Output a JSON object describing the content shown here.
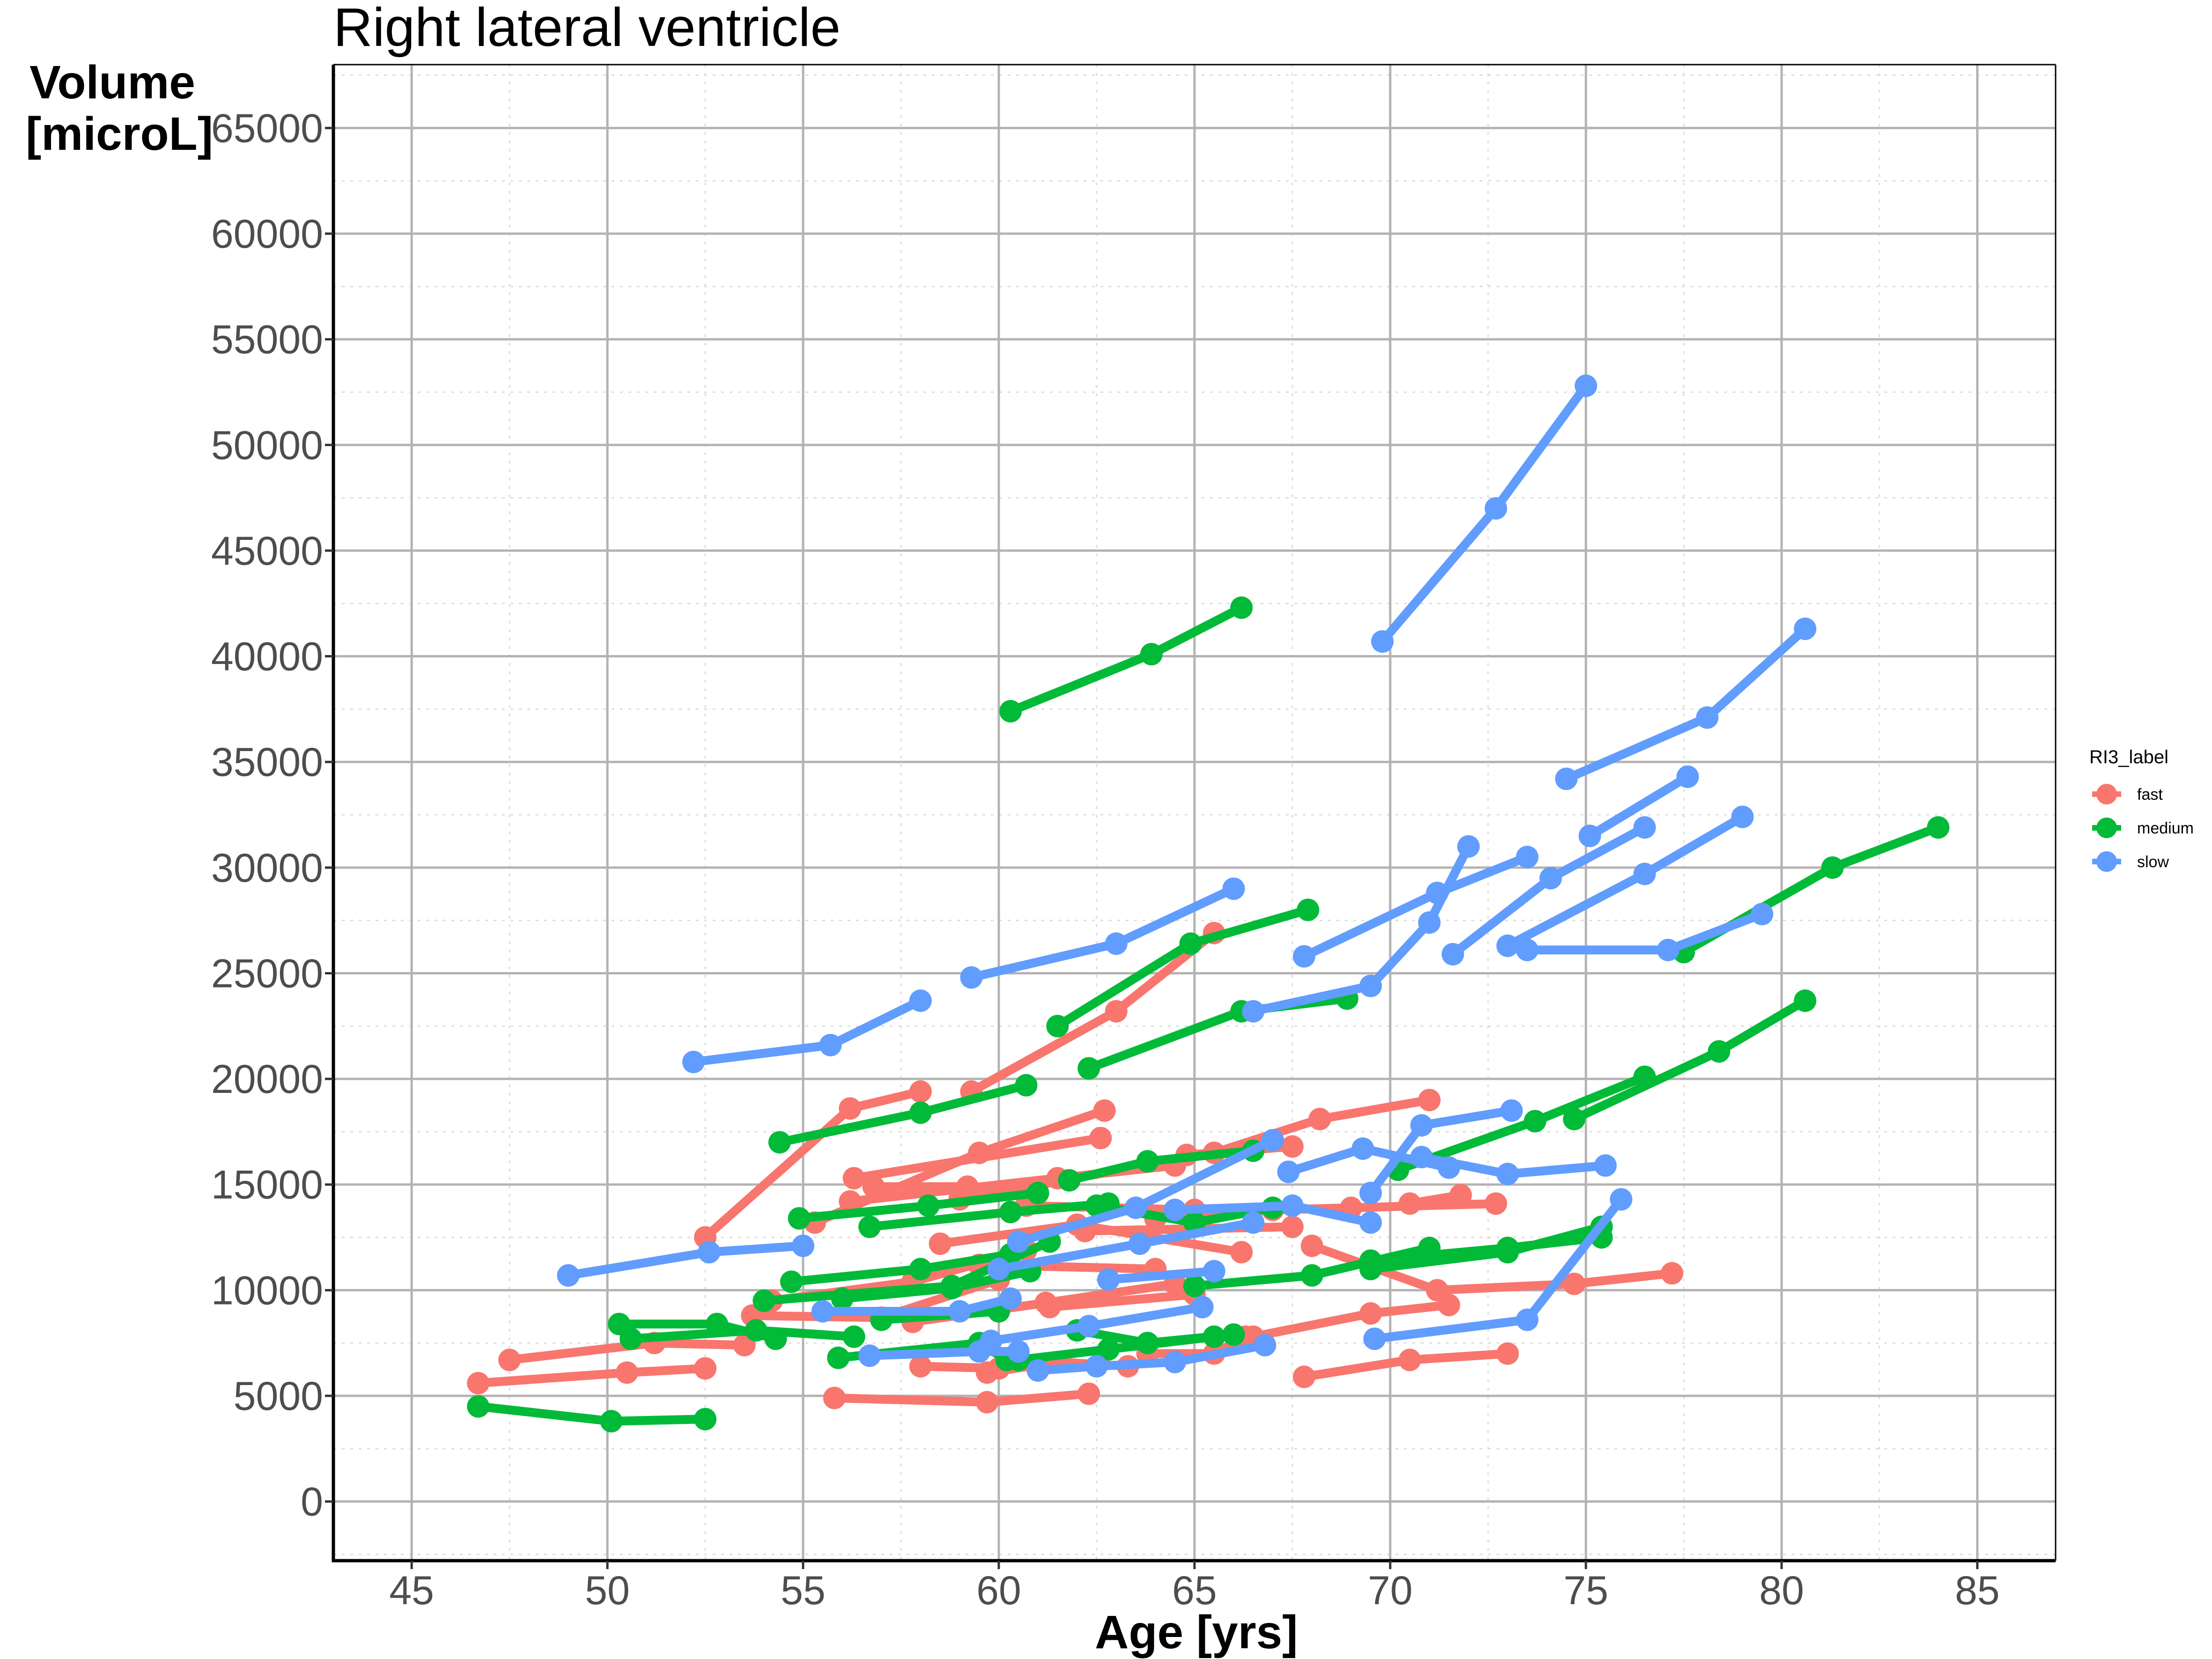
{
  "chart_data": {
    "type": "line",
    "title": "Right lateral ventricle",
    "xlabel": "Age [yrs]",
    "ylabel_lines": [
      "Volume",
      "[microL]"
    ],
    "xlim": [
      43,
      87
    ],
    "ylim": [
      -2800,
      68000
    ],
    "xticks": [
      45,
      50,
      55,
      60,
      65,
      70,
      75,
      80,
      85
    ],
    "yticks": [
      0,
      5000,
      10000,
      15000,
      20000,
      25000,
      30000,
      35000,
      40000,
      45000,
      50000,
      55000,
      60000,
      65000
    ],
    "grid": true,
    "legend": {
      "title": "RI3_label",
      "position": "right",
      "entries": [
        {
          "label": "fast",
          "color": "#F8766D"
        },
        {
          "label": "medium",
          "color": "#00BA38"
        },
        {
          "label": "slow",
          "color": "#619CFF"
        }
      ]
    },
    "series": [
      {
        "group": "fast",
        "points": [
          [
            46.7,
            5600
          ],
          [
            50.5,
            6100
          ],
          [
            52.5,
            6300
          ]
        ]
      },
      {
        "group": "fast",
        "points": [
          [
            47.5,
            6700
          ],
          [
            51.2,
            7500
          ],
          [
            53.5,
            7400
          ]
        ]
      },
      {
        "group": "fast",
        "points": [
          [
            52.5,
            12500
          ],
          [
            56.2,
            18600
          ],
          [
            58.0,
            19400
          ]
        ]
      },
      {
        "group": "fast",
        "points": [
          [
            55.3,
            13200
          ],
          [
            59.5,
            16500
          ],
          [
            62.7,
            18500
          ]
        ]
      },
      {
        "group": "fast",
        "points": [
          [
            56.3,
            15300
          ],
          [
            62.6,
            17200
          ]
        ]
      },
      {
        "group": "fast",
        "points": [
          [
            56.8,
            14900
          ],
          [
            59.2,
            14900
          ]
        ]
      },
      {
        "group": "fast",
        "points": [
          [
            56.2,
            14200
          ],
          [
            61.5,
            15300
          ],
          [
            64.5,
            15900
          ]
        ]
      },
      {
        "group": "fast",
        "points": [
          [
            59.3,
            19400
          ],
          [
            63.0,
            23200
          ],
          [
            65.5,
            26900
          ]
        ]
      },
      {
        "group": "fast",
        "points": [
          [
            53.7,
            8800
          ],
          [
            57.0,
            8700
          ],
          [
            60.0,
            10500
          ]
        ]
      },
      {
        "group": "fast",
        "points": [
          [
            54.2,
            9500
          ],
          [
            57.8,
            10400
          ],
          [
            60.7,
            11900
          ]
        ]
      },
      {
        "group": "fast",
        "points": [
          [
            58.5,
            12200
          ],
          [
            62.0,
            13100
          ],
          [
            66.2,
            11800
          ]
        ]
      },
      {
        "group": "fast",
        "points": [
          [
            57.8,
            8500
          ],
          [
            61.2,
            9400
          ],
          [
            64.5,
            10300
          ]
        ]
      },
      {
        "group": "fast",
        "points": [
          [
            59.5,
            11200
          ],
          [
            64.0,
            11000
          ]
        ]
      },
      {
        "group": "fast",
        "points": [
          [
            60.7,
            14000
          ],
          [
            65.0,
            13800
          ]
        ]
      },
      {
        "group": "fast",
        "points": [
          [
            59.0,
            14300
          ],
          [
            65.5,
            16500
          ],
          [
            68.2,
            18100
          ],
          [
            71.0,
            19000
          ]
        ]
      },
      {
        "group": "fast",
        "points": [
          [
            62.2,
            12800
          ],
          [
            67.5,
            13000
          ]
        ]
      },
      {
        "group": "fast",
        "points": [
          [
            64.0,
            13400
          ],
          [
            67.0,
            13800
          ],
          [
            69.0,
            13900
          ],
          [
            72.7,
            14100
          ]
        ]
      },
      {
        "group": "fast",
        "points": [
          [
            64.8,
            16400
          ],
          [
            67.5,
            16800
          ]
        ]
      },
      {
        "group": "fast",
        "points": [
          [
            70.5,
            14100
          ],
          [
            71.8,
            14500
          ]
        ]
      },
      {
        "group": "fast",
        "points": [
          [
            58.0,
            6400
          ],
          [
            60.0,
            6300
          ]
        ]
      },
      {
        "group": "fast",
        "points": [
          [
            55.8,
            4900
          ],
          [
            59.7,
            4700
          ],
          [
            62.3,
            5100
          ]
        ]
      },
      {
        "group": "fast",
        "points": [
          [
            59.7,
            6100
          ],
          [
            61.5,
            6600
          ],
          [
            63.3,
            6400
          ]
        ]
      },
      {
        "group": "fast",
        "points": [
          [
            63.8,
            7000
          ],
          [
            65.5,
            7000
          ],
          [
            66.3,
            7800
          ]
        ]
      },
      {
        "group": "fast",
        "points": [
          [
            66.5,
            7800
          ],
          [
            69.5,
            8900
          ],
          [
            71.5,
            9300
          ]
        ]
      },
      {
        "group": "fast",
        "points": [
          [
            67.8,
            5900
          ],
          [
            70.5,
            6700
          ],
          [
            73.0,
            7000
          ]
        ]
      },
      {
        "group": "fast",
        "points": [
          [
            68.0,
            12100
          ],
          [
            71.2,
            10000
          ],
          [
            74.7,
            10300
          ],
          [
            77.2,
            10800
          ]
        ]
      },
      {
        "group": "fast",
        "points": [
          [
            61.3,
            9200
          ],
          [
            65.0,
            9800
          ]
        ]
      },
      {
        "group": "medium",
        "points": [
          [
            46.7,
            4500
          ],
          [
            50.1,
            3800
          ],
          [
            52.5,
            3900
          ]
        ]
      },
      {
        "group": "medium",
        "points": [
          [
            50.3,
            8400
          ],
          [
            52.8,
            8400
          ],
          [
            54.3,
            7700
          ]
        ]
      },
      {
        "group": "medium",
        "points": [
          [
            50.6,
            7700
          ],
          [
            53.8,
            8100
          ],
          [
            56.3,
            7800
          ]
        ]
      },
      {
        "group": "medium",
        "points": [
          [
            54.0,
            9500
          ],
          [
            58.8,
            10200
          ],
          [
            61.3,
            12300
          ]
        ]
      },
      {
        "group": "medium",
        "points": [
          [
            54.4,
            17000
          ],
          [
            58.0,
            18400
          ],
          [
            60.7,
            19700
          ]
        ]
      },
      {
        "group": "medium",
        "points": [
          [
            54.7,
            10400
          ],
          [
            58.0,
            11000
          ],
          [
            60.3,
            11700
          ]
        ]
      },
      {
        "group": "medium",
        "points": [
          [
            54.9,
            13400
          ],
          [
            58.2,
            14000
          ],
          [
            61.0,
            14600
          ]
        ]
      },
      {
        "group": "medium",
        "points": [
          [
            56.7,
            13000
          ],
          [
            60.3,
            13700
          ],
          [
            62.8,
            14100
          ]
        ]
      },
      {
        "group": "medium",
        "points": [
          [
            56.0,
            9600
          ],
          [
            58.8,
            10100
          ],
          [
            60.8,
            10900
          ]
        ]
      },
      {
        "group": "medium",
        "points": [
          [
            55.9,
            6800
          ],
          [
            59.5,
            7500
          ],
          [
            60.2,
            6700
          ]
        ]
      },
      {
        "group": "medium",
        "points": [
          [
            57.0,
            8600
          ],
          [
            60.0,
            9000
          ]
        ]
      },
      {
        "group": "medium",
        "points": [
          [
            61.5,
            22500
          ],
          [
            64.9,
            26400
          ],
          [
            67.9,
            28000
          ]
        ]
      },
      {
        "group": "medium",
        "points": [
          [
            60.3,
            37400
          ],
          [
            63.9,
            40100
          ],
          [
            66.2,
            42300
          ]
        ]
      },
      {
        "group": "medium",
        "points": [
          [
            62.3,
            20500
          ],
          [
            66.2,
            23200
          ],
          [
            68.9,
            23800
          ]
        ]
      },
      {
        "group": "medium",
        "points": [
          [
            61.8,
            15200
          ],
          [
            63.8,
            16100
          ],
          [
            66.5,
            16600
          ]
        ]
      },
      {
        "group": "medium",
        "points": [
          [
            60.5,
            6700
          ],
          [
            62.8,
            7200
          ],
          [
            65.5,
            7800
          ]
        ]
      },
      {
        "group": "medium",
        "points": [
          [
            62.0,
            8100
          ],
          [
            63.8,
            7500
          ],
          [
            66.0,
            7900
          ]
        ]
      },
      {
        "group": "medium",
        "points": [
          [
            62.5,
            14000
          ],
          [
            65.0,
            13200
          ],
          [
            67.0,
            13900
          ]
        ]
      },
      {
        "group": "medium",
        "points": [
          [
            65.0,
            10200
          ],
          [
            68.0,
            10700
          ],
          [
            71.0,
            12000
          ]
        ]
      },
      {
        "group": "medium",
        "points": [
          [
            69.5,
            11000
          ],
          [
            73.0,
            11800
          ],
          [
            75.4,
            13000
          ]
        ]
      },
      {
        "group": "medium",
        "points": [
          [
            69.5,
            11400
          ],
          [
            73.0,
            12000
          ],
          [
            75.4,
            12500
          ]
        ]
      },
      {
        "group": "medium",
        "points": [
          [
            70.2,
            15700
          ],
          [
            73.7,
            18000
          ],
          [
            76.5,
            20100
          ]
        ]
      },
      {
        "group": "medium",
        "points": [
          [
            74.7,
            18100
          ],
          [
            78.4,
            21300
          ],
          [
            80.6,
            23700
          ]
        ]
      },
      {
        "group": "medium",
        "points": [
          [
            77.5,
            26000
          ],
          [
            81.3,
            30000
          ],
          [
            84.0,
            31900
          ]
        ]
      },
      {
        "group": "slow",
        "points": [
          [
            49.0,
            10700
          ],
          [
            52.6,
            11800
          ],
          [
            55.0,
            12100
          ]
        ]
      },
      {
        "group": "slow",
        "points": [
          [
            52.2,
            20800
          ],
          [
            55.7,
            21600
          ],
          [
            58.0,
            23700
          ]
        ]
      },
      {
        "group": "slow",
        "points": [
          [
            55.5,
            9000
          ],
          [
            59.0,
            9000
          ],
          [
            60.3,
            9600
          ]
        ]
      },
      {
        "group": "slow",
        "points": [
          [
            56.7,
            6900
          ],
          [
            59.5,
            7100
          ],
          [
            60.5,
            7100
          ]
        ]
      },
      {
        "group": "slow",
        "points": [
          [
            59.3,
            24800
          ],
          [
            63.0,
            26400
          ],
          [
            66.0,
            29000
          ]
        ]
      },
      {
        "group": "slow",
        "points": [
          [
            60.5,
            12300
          ],
          [
            63.5,
            13900
          ],
          [
            67.0,
            17100
          ]
        ]
      },
      {
        "group": "slow",
        "points": [
          [
            60.0,
            11000
          ],
          [
            63.6,
            12200
          ],
          [
            66.5,
            13200
          ]
        ]
      },
      {
        "group": "slow",
        "points": [
          [
            59.8,
            7600
          ],
          [
            62.3,
            8300
          ],
          [
            65.2,
            9200
          ]
        ]
      },
      {
        "group": "slow",
        "points": [
          [
            61.0,
            6200
          ],
          [
            62.5,
            6400
          ],
          [
            64.5,
            6600
          ],
          [
            66.8,
            7400
          ]
        ]
      },
      {
        "group": "slow",
        "points": [
          [
            62.8,
            10500
          ],
          [
            65.5,
            10900
          ]
        ]
      },
      {
        "group": "slow",
        "points": [
          [
            64.5,
            13800
          ],
          [
            67.5,
            14000
          ],
          [
            69.5,
            13200
          ]
        ]
      },
      {
        "group": "slow",
        "points": [
          [
            66.5,
            23200
          ],
          [
            69.5,
            24400
          ],
          [
            71.0,
            27400
          ],
          [
            72.0,
            31000
          ]
        ]
      },
      {
        "group": "slow",
        "points": [
          [
            67.4,
            15600
          ],
          [
            69.3,
            16700
          ],
          [
            71.5,
            15800
          ]
        ]
      },
      {
        "group": "slow",
        "points": [
          [
            67.8,
            25800
          ],
          [
            71.2,
            28800
          ],
          [
            73.5,
            30500
          ]
        ]
      },
      {
        "group": "slow",
        "points": [
          [
            69.5,
            14600
          ],
          [
            70.8,
            17800
          ],
          [
            73.1,
            18500
          ]
        ]
      },
      {
        "group": "slow",
        "points": [
          [
            69.8,
            40700
          ],
          [
            72.7,
            47000
          ],
          [
            75.0,
            52800
          ]
        ]
      },
      {
        "group": "slow",
        "points": [
          [
            70.8,
            16300
          ],
          [
            73.0,
            15500
          ],
          [
            75.5,
            15900
          ]
        ]
      },
      {
        "group": "slow",
        "points": [
          [
            69.6,
            7700
          ],
          [
            73.5,
            8600
          ],
          [
            75.9,
            14300
          ]
        ]
      },
      {
        "group": "slow",
        "points": [
          [
            71.6,
            25900
          ],
          [
            74.1,
            29500
          ],
          [
            76.5,
            31900
          ]
        ]
      },
      {
        "group": "slow",
        "points": [
          [
            73.0,
            26300
          ],
          [
            76.5,
            29700
          ],
          [
            79.0,
            32400
          ]
        ]
      },
      {
        "group": "slow",
        "points": [
          [
            73.5,
            26100
          ],
          [
            77.1,
            26100
          ],
          [
            79.5,
            27800
          ]
        ]
      },
      {
        "group": "slow",
        "points": [
          [
            74.5,
            34200
          ],
          [
            78.1,
            37100
          ],
          [
            80.6,
            41300
          ]
        ]
      },
      {
        "group": "slow",
        "points": [
          [
            75.1,
            31500
          ],
          [
            77.6,
            34300
          ]
        ]
      }
    ]
  }
}
